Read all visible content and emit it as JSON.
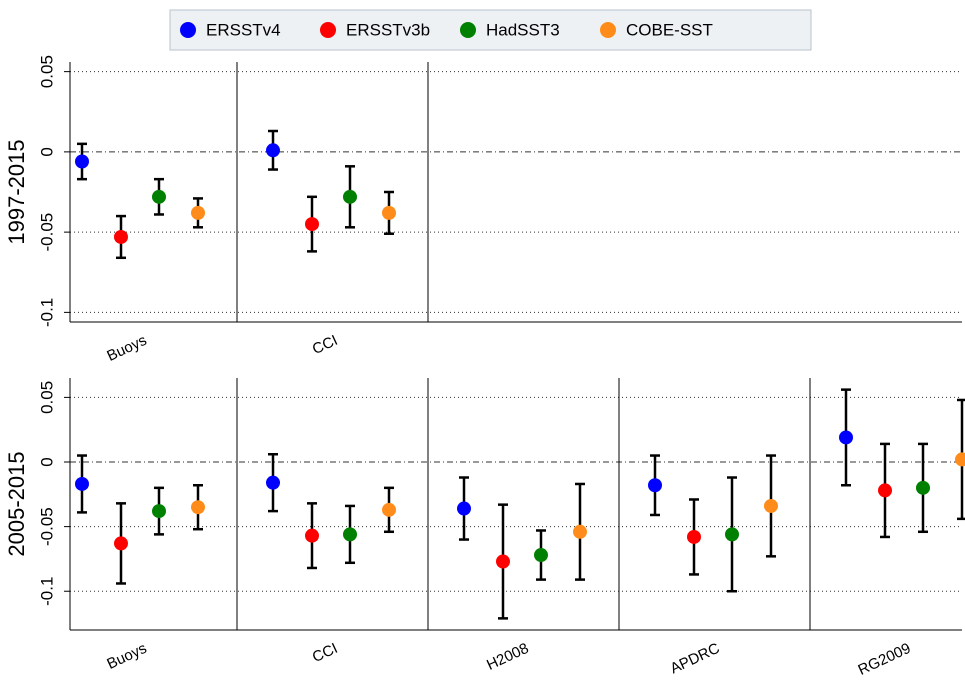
{
  "chart_data": [
    {
      "type": "errorbar",
      "y_label": "1997-2015",
      "categories": [
        "Buoys",
        "CCI",
        null,
        null,
        null
      ],
      "ylim": [
        -0.106,
        0.056
      ],
      "yticks": [
        0.05,
        0,
        -0.05,
        -0.1
      ],
      "grid": true,
      "series": [
        {
          "name": "ERSSTv4",
          "color": "#0000ff",
          "values": [
            -0.006,
            0.001,
            null,
            null,
            null
          ],
          "errors": [
            0.011,
            0.012,
            null,
            null,
            null
          ]
        },
        {
          "name": "ERSSTv3b",
          "color": "#ff0000",
          "values": [
            -0.053,
            -0.045,
            null,
            null,
            null
          ],
          "errors": [
            0.013,
            0.017,
            null,
            null,
            null
          ]
        },
        {
          "name": "HadSST3",
          "color": "#008000",
          "values": [
            -0.028,
            -0.028,
            null,
            null,
            null
          ],
          "errors": [
            0.011,
            0.019,
            null,
            null,
            null
          ]
        },
        {
          "name": "COBE-SST",
          "color": "#ff8c1a",
          "values": [
            -0.038,
            -0.038,
            null,
            null,
            null
          ],
          "errors": [
            0.009,
            0.013,
            null,
            null,
            null
          ]
        }
      ]
    },
    {
      "type": "errorbar",
      "y_label": "2005-2015",
      "categories": [
        "Buoys",
        "CCI",
        "H2008",
        "APDRC",
        "RG2009"
      ],
      "ylim": [
        -0.13,
        0.065
      ],
      "yticks": [
        0.05,
        0,
        -0.05,
        -0.1
      ],
      "grid": true,
      "series": [
        {
          "color": "#0000ff",
          "values": [
            -0.017,
            -0.016,
            -0.036,
            -0.018,
            0.019
          ],
          "errors": [
            0.022,
            0.022,
            0.024,
            0.023,
            0.037
          ]
        },
        {
          "color": "#ff0000",
          "values": [
            -0.063,
            -0.057,
            -0.077,
            -0.058,
            -0.022
          ],
          "errors": [
            0.031,
            0.025,
            0.044,
            0.029,
            0.036
          ]
        },
        {
          "color": "#008000",
          "values": [
            -0.038,
            -0.056,
            -0.072,
            -0.056,
            -0.02
          ],
          "errors": [
            0.018,
            0.022,
            0.019,
            0.044,
            0.034
          ]
        },
        {
          "color": "#ff8c1a",
          "values": [
            -0.035,
            -0.037,
            -0.054,
            -0.034,
            0.002
          ],
          "errors": [
            0.017,
            0.017,
            0.037,
            0.039,
            0.046
          ]
        }
      ]
    }
  ]
}
